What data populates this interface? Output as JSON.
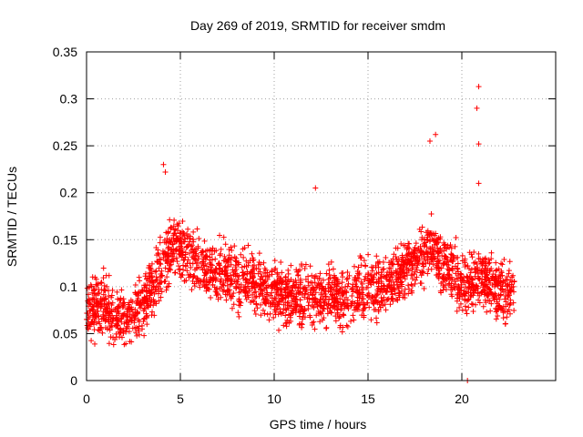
{
  "chart_data": {
    "type": "scatter",
    "title": "Day 269 of 2019, SRMTID for receiver smdm",
    "xlabel": "GPS time / hours",
    "ylabel": "SRMTID / TECUs",
    "xlim": [
      0,
      25
    ],
    "ylim": [
      0,
      0.35
    ],
    "xticks": [
      0,
      5,
      10,
      15,
      20
    ],
    "xtick_labels": [
      "0",
      "5",
      "10",
      "15",
      "20"
    ],
    "yticks": [
      0,
      0.05,
      0.1,
      0.15,
      0.2,
      0.25,
      0.3,
      0.35
    ],
    "ytick_labels": [
      "0",
      "0.05",
      "0.1",
      "0.15",
      "0.2",
      "0.25",
      "0.3",
      "0.35"
    ],
    "grid": true,
    "marker": "+",
    "color": "#ff0000",
    "x_extent_hours": [
      0,
      22.8
    ],
    "trend": {
      "hour": [
        0,
        1,
        1.5,
        2,
        3,
        3.5,
        4,
        4.5,
        5,
        6,
        7,
        8,
        9,
        10,
        11,
        12,
        13,
        14,
        15,
        16,
        17,
        18,
        18.5,
        19,
        20,
        20.5,
        21,
        22,
        22.8
      ],
      "value": [
        0.075,
        0.08,
        0.065,
        0.065,
        0.08,
        0.1,
        0.12,
        0.14,
        0.14,
        0.125,
        0.115,
        0.11,
        0.105,
        0.095,
        0.09,
        0.09,
        0.09,
        0.09,
        0.1,
        0.1,
        0.12,
        0.135,
        0.14,
        0.125,
        0.105,
        0.1,
        0.11,
        0.095,
        0.09
      ]
    },
    "notable_points": [
      {
        "x": 20.9,
        "y": 0.313
      },
      {
        "x": 20.8,
        "y": 0.29
      },
      {
        "x": 18.6,
        "y": 0.262
      },
      {
        "x": 18.3,
        "y": 0.255
      },
      {
        "x": 20.9,
        "y": 0.252
      },
      {
        "x": 4.1,
        "y": 0.23
      },
      {
        "x": 4.2,
        "y": 0.222
      },
      {
        "x": 20.9,
        "y": 0.21
      },
      {
        "x": 12.2,
        "y": 0.205
      },
      {
        "x": 20.3,
        "y": 0.0
      }
    ]
  }
}
